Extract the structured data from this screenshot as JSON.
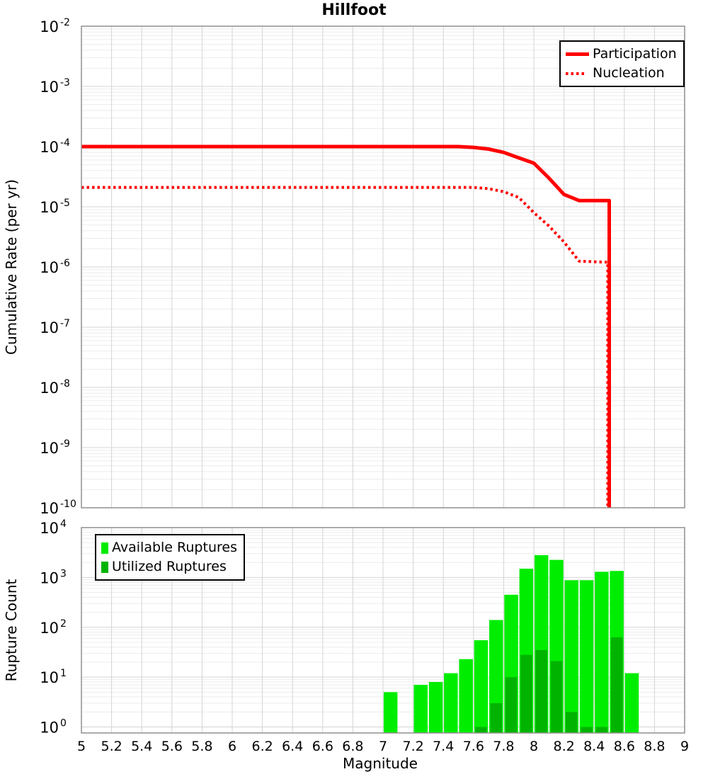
{
  "title": "Hillfoot",
  "figure": {
    "background": "#ffffff",
    "panel_border_color": "#8f8f8f",
    "grid_major_color": "#d4d4d4",
    "grid_minor_color": "#ececec",
    "text_color": "#000000",
    "accent_red": "#ff0000",
    "accent_green_light": "#00ed00",
    "accent_green_dark": "#00b300"
  },
  "chart_data": [
    {
      "type": "line",
      "panel": "cumulative-rate",
      "title": "Hillfoot",
      "ylabel": "Cumulative Rate (per yr)",
      "x_range": [
        5,
        9
      ],
      "y_log_range": [
        -10,
        -2
      ],
      "y_tick_exponents": [
        -2,
        -3,
        -4,
        -5,
        -6,
        -7,
        -8,
        -9,
        -10
      ],
      "x_ticks": [
        5,
        5.2,
        5.4,
        5.6,
        5.8,
        6,
        6.2,
        6.4,
        6.6,
        6.8,
        7,
        7.2,
        7.4,
        7.6,
        7.8,
        8,
        8.2,
        8.4,
        8.6,
        8.8,
        9
      ],
      "x_tick_labels": [],
      "show_x_tick_labels": false,
      "grid": true,
      "legend_position": "top-right",
      "series": [
        {
          "name": "Participation",
          "line_style": "solid",
          "color": "#ff0000",
          "line_width": 5,
          "points": [
            [
              5.0,
              0.0001
            ],
            [
              7.5,
              0.0001
            ],
            [
              7.6,
              9.7e-05
            ],
            [
              7.7,
              9.1e-05
            ],
            [
              7.8,
              8e-05
            ],
            [
              7.9,
              6.5e-05
            ],
            [
              8.0,
              5.3e-05
            ],
            [
              8.1,
              3e-05
            ],
            [
              8.2,
              1.6e-05
            ],
            [
              8.3,
              1.27e-05
            ],
            [
              8.5,
              1.27e-05
            ],
            [
              8.5,
              1e-10
            ]
          ]
        },
        {
          "name": "Nucleation",
          "line_style": "dotted",
          "color": "#ff0000",
          "line_width": 4,
          "points": [
            [
              5.0,
              2.1e-05
            ],
            [
              7.6,
              2.1e-05
            ],
            [
              7.7,
              2e-05
            ],
            [
              7.8,
              1.78e-05
            ],
            [
              7.9,
              1.43e-05
            ],
            [
              8.0,
              8e-06
            ],
            [
              8.1,
              4.8e-06
            ],
            [
              8.2,
              2.6e-06
            ],
            [
              8.3,
              1.25e-06
            ],
            [
              8.49,
              1.2e-06
            ],
            [
              8.49,
              1e-10
            ]
          ]
        }
      ]
    },
    {
      "type": "bar",
      "panel": "rupture-count",
      "xlabel": "Magnitude",
      "ylabel": "Rupture Count",
      "x_range": [
        5,
        9
      ],
      "y_log_range": [
        0,
        4
      ],
      "y_tick_exponents": [
        4,
        3,
        2,
        1,
        0
      ],
      "x_ticks": [
        5,
        5.2,
        5.4,
        5.6,
        5.8,
        6,
        6.2,
        6.4,
        6.6,
        6.8,
        7,
        7.2,
        7.4,
        7.6,
        7.8,
        8,
        8.2,
        8.4,
        8.6,
        8.8,
        9
      ],
      "x_tick_labels": [
        "5",
        "5.2",
        "5.4",
        "5.6",
        "5.8",
        "6",
        "6.2",
        "6.4",
        "6.6",
        "6.8",
        "7",
        "7.2",
        "7.4",
        "7.6",
        "7.8",
        "8",
        "8.2",
        "8.4",
        "8.6",
        "8.8",
        "9"
      ],
      "show_x_tick_labels": true,
      "grid": true,
      "legend_position": "top-left",
      "bin_width": 0.1,
      "categories": [
        7.05,
        7.25,
        7.35,
        7.45,
        7.55,
        7.65,
        7.75,
        7.85,
        7.95,
        8.05,
        8.15,
        8.25,
        8.35,
        8.45,
        8.55,
        8.65
      ],
      "series": [
        {
          "name": "Available Ruptures",
          "color": "#00ed00",
          "values": [
            5,
            7,
            8,
            12,
            23,
            55,
            140,
            450,
            1500,
            2800,
            2250,
            880,
            880,
            1300,
            1350,
            12
          ]
        },
        {
          "name": "Utilized Ruptures",
          "color": "#00b300",
          "values": [
            0,
            0,
            0,
            0,
            0,
            1,
            3,
            10,
            28,
            35,
            21,
            2,
            1,
            1,
            63,
            0
          ]
        }
      ]
    }
  ]
}
